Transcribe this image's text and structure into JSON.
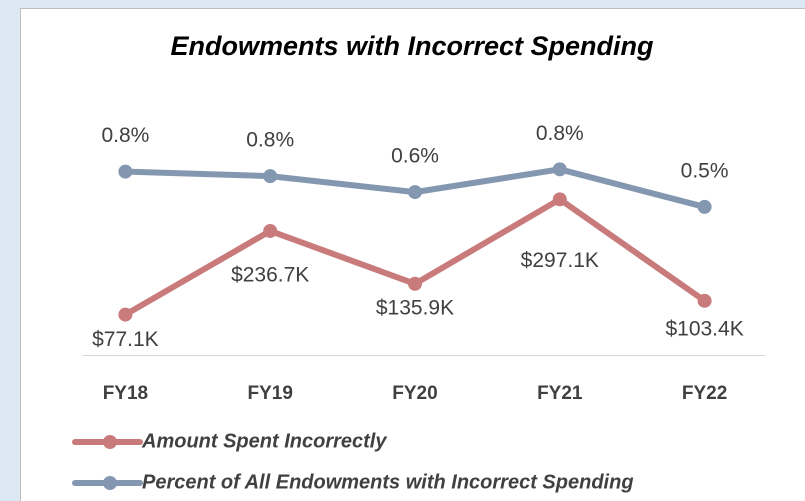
{
  "chart_data": {
    "type": "line",
    "title": "Endowments with Incorrect Spending",
    "categories": [
      "FY18",
      "FY19",
      "FY20",
      "FY21",
      "FY22"
    ],
    "series": [
      {
        "name": "Amount Spent Incorrectly",
        "color": "#c97b7c",
        "values": [
          77100,
          236700,
          135900,
          297100,
          103400
        ],
        "value_labels": [
          "$77.1K",
          "$236.7K",
          "$135.9K",
          "$297.1K",
          "$103.4K"
        ]
      },
      {
        "name": "Percent of All Endowments with Incorrect Spending",
        "color": "#8497b0",
        "axis": "y2",
        "values": [
          0.81,
          0.77,
          0.63,
          0.83,
          0.5
        ],
        "value_labels": [
          "0.8%",
          "0.8%",
          "0.6%",
          "0.8%",
          "0.5%"
        ]
      }
    ],
    "ylim": [
      0,
      500000
    ],
    "y2lim": [
      -0.8,
      1.5
    ],
    "legend": "bottom"
  }
}
